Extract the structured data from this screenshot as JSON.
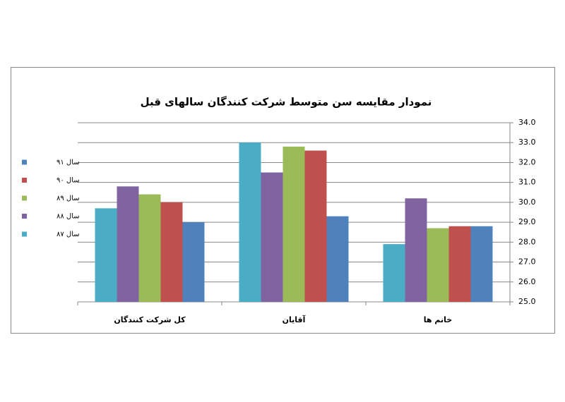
{
  "chart_data": {
    "type": "bar",
    "title": "نمودار مقایسه سن متوسط شرکت کنندگان سالهای قبل",
    "categories": [
      "کل شرکت کنندگان",
      "آقایان",
      "خانم ها"
    ],
    "series": [
      {
        "name": "سال ۸۷",
        "color": "#4bacc6",
        "values": [
          29.7,
          33.0,
          27.9
        ]
      },
      {
        "name": "سال ۸۸",
        "color": "#8064a2",
        "values": [
          30.8,
          31.5,
          30.2
        ]
      },
      {
        "name": "سال ۸۹",
        "color": "#9bbb59",
        "values": [
          30.4,
          32.8,
          28.7
        ]
      },
      {
        "name": "سال ۹۰",
        "color": "#c0504d",
        "values": [
          30.0,
          32.6,
          28.8
        ]
      },
      {
        "name": "سال ۹۱",
        "color": "#4f81bd",
        "values": [
          29.0,
          29.3,
          28.8
        ]
      }
    ],
    "ylim": [
      25,
      34
    ],
    "yticks": [
      {
        "value": 25,
        "label": "25.0"
      },
      {
        "value": 26,
        "label": "26.0"
      },
      {
        "value": 27,
        "label": "27.0"
      },
      {
        "value": 28,
        "label": "28.0"
      },
      {
        "value": 29,
        "label": "29.0"
      },
      {
        "value": 30,
        "label": "30.0"
      },
      {
        "value": 31,
        "label": "31.0"
      },
      {
        "value": 32,
        "label": "32.0"
      },
      {
        "value": 33,
        "label": "33.0"
      },
      {
        "value": 34,
        "label": "34.0"
      }
    ],
    "grid": true,
    "legend": "left"
  }
}
